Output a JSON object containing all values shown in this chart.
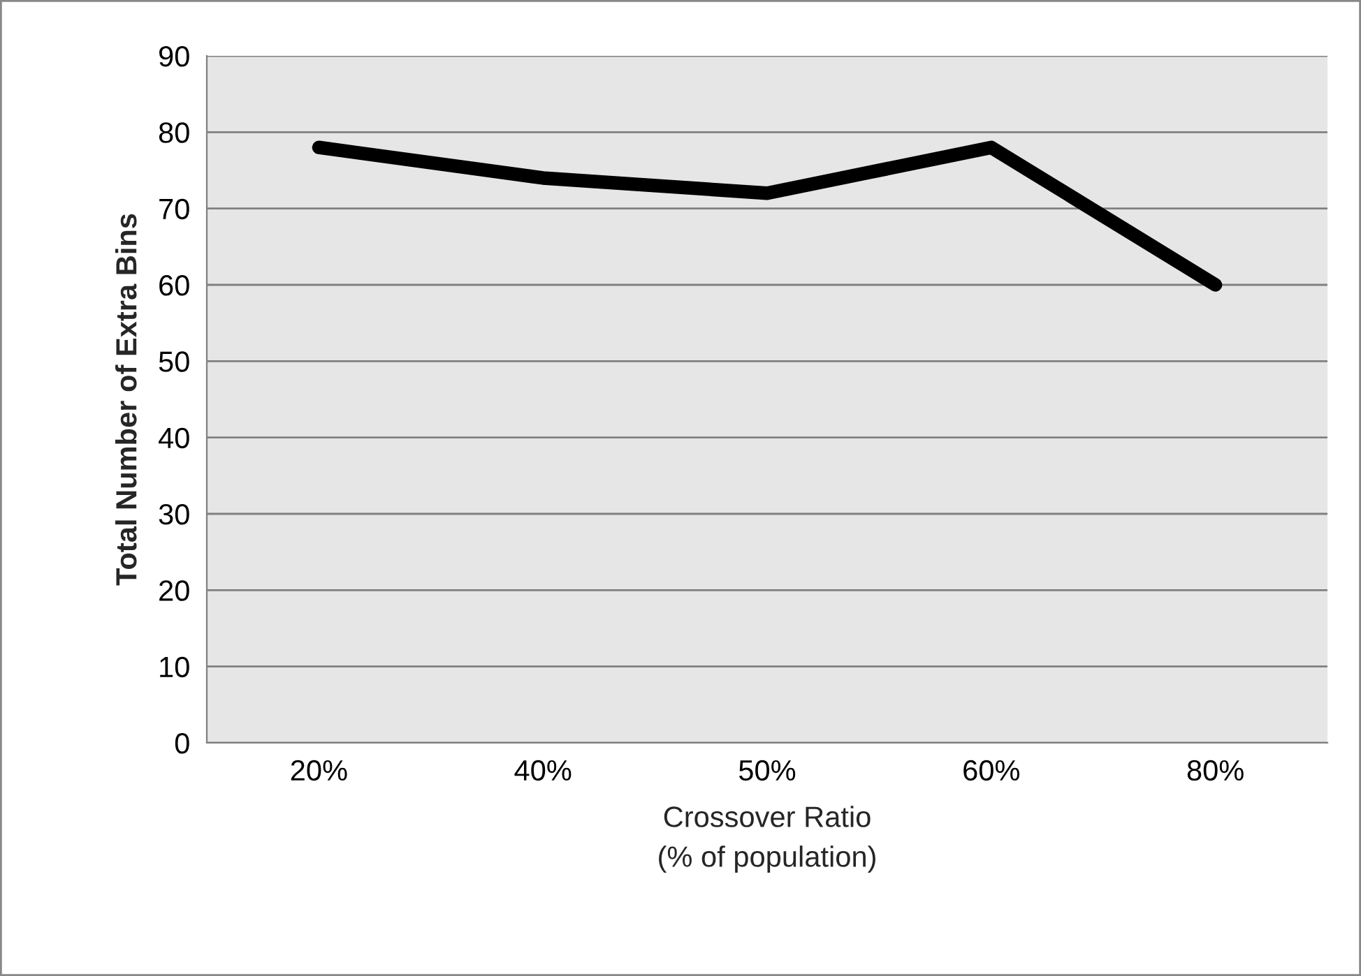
{
  "chart_data": {
    "type": "line",
    "xlabel": "Crossover Ratio\n(% of population)",
    "ylabel": "Total Number of Extra Bins",
    "categories": [
      "20%",
      "40%",
      "50%",
      "60%",
      "80%"
    ],
    "series": [
      {
        "color": "#000000",
        "values": [
          78,
          74,
          72,
          78,
          60
        ]
      }
    ],
    "ylim": [
      0,
      90
    ],
    "yticks": [
      0,
      10,
      20,
      30,
      40,
      50,
      60,
      70,
      80,
      90
    ],
    "grid": "y",
    "legend": false,
    "marker": "none",
    "line_style": "solid"
  }
}
